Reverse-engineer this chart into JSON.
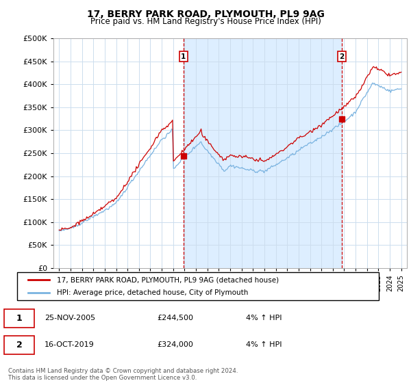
{
  "title": "17, BERRY PARK ROAD, PLYMOUTH, PL9 9AG",
  "subtitle": "Price paid vs. HM Land Registry's House Price Index (HPI)",
  "footer": "Contains HM Land Registry data © Crown copyright and database right 2024.\nThis data is licensed under the Open Government Licence v3.0.",
  "legend_line1": "17, BERRY PARK ROAD, PLYMOUTH, PL9 9AG (detached house)",
  "legend_line2": "HPI: Average price, detached house, City of Plymouth",
  "sale1_label": "1",
  "sale1_date": "25-NOV-2005",
  "sale1_price": "£244,500",
  "sale1_hpi": "4% ↑ HPI",
  "sale1_year": 2005.9,
  "sale1_value": 244500,
  "sale2_label": "2",
  "sale2_date": "16-OCT-2019",
  "sale2_price": "£324,000",
  "sale2_hpi": "4% ↑ HPI",
  "sale2_year": 2019.8,
  "sale2_value": 324000,
  "hpi_color": "#7ab3e0",
  "price_color": "#cc0000",
  "shade_color": "#ddeeff",
  "marker_color": "#cc0000",
  "dashed_color": "#cc0000",
  "ylim": [
    0,
    500000
  ],
  "yticks": [
    0,
    50000,
    100000,
    150000,
    200000,
    250000,
    300000,
    350000,
    400000,
    450000,
    500000
  ],
  "background_color": "#ffffff",
  "grid_color": "#ccddee"
}
